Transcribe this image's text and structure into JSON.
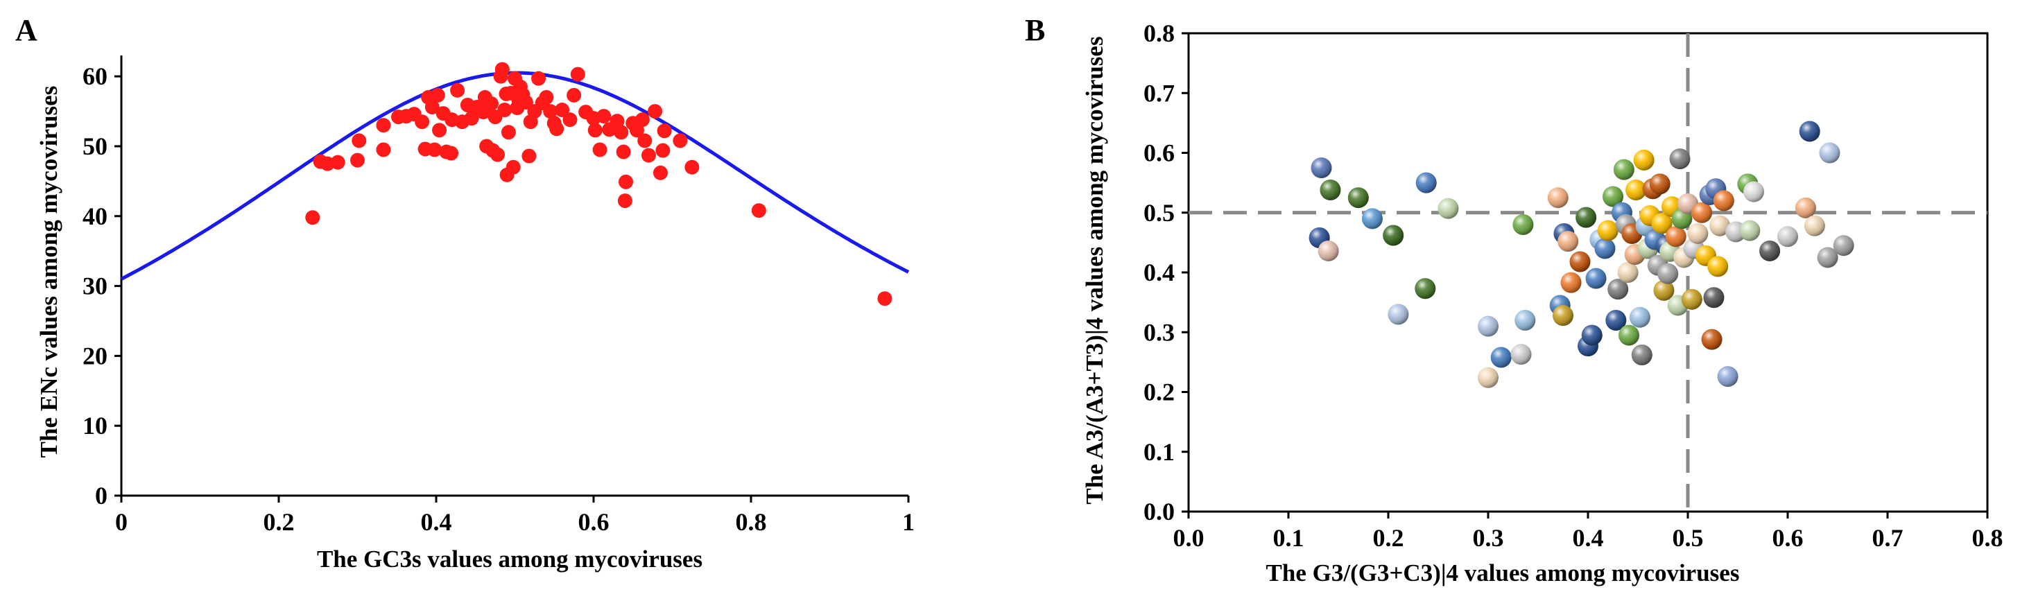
{
  "chart_data": [
    {
      "panel_label": "A",
      "type": "scatter",
      "xlabel": "The GC3s values among mycoviruses",
      "ylabel": "The ENc values among mycoviruses",
      "xlim": [
        0,
        1
      ],
      "ylim": [
        0,
        62
      ],
      "xticks": [
        "0",
        "0.2",
        "0.4",
        "0.6",
        "0.8",
        "1"
      ],
      "xtick_values": [
        0,
        0.2,
        0.4,
        0.6,
        0.8,
        1
      ],
      "yticks": [
        "0",
        "10",
        "20",
        "30",
        "40",
        "50",
        "60"
      ],
      "ytick_values": [
        0,
        10,
        20,
        30,
        40,
        50,
        60
      ],
      "expected_curve": "ENc = 2 + GC3s + 29/(GC3s^2 + (1 - GC3s)^2)",
      "colors": {
        "points": "#ff1a1a",
        "curve": "#1a1aee"
      },
      "points": [
        {
          "x": 0.243,
          "y": 39.8
        },
        {
          "x": 0.253,
          "y": 47.8
        },
        {
          "x": 0.262,
          "y": 47.5
        },
        {
          "x": 0.275,
          "y": 47.7
        },
        {
          "x": 0.3,
          "y": 48.0
        },
        {
          "x": 0.302,
          "y": 50.8
        },
        {
          "x": 0.333,
          "y": 53.0
        },
        {
          "x": 0.333,
          "y": 49.5
        },
        {
          "x": 0.352,
          "y": 54.2
        },
        {
          "x": 0.362,
          "y": 54.3
        },
        {
          "x": 0.372,
          "y": 54.6
        },
        {
          "x": 0.382,
          "y": 53.5
        },
        {
          "x": 0.386,
          "y": 49.6
        },
        {
          "x": 0.39,
          "y": 57.0
        },
        {
          "x": 0.395,
          "y": 55.6
        },
        {
          "x": 0.398,
          "y": 49.5
        },
        {
          "x": 0.402,
          "y": 57.3
        },
        {
          "x": 0.404,
          "y": 52.3
        },
        {
          "x": 0.409,
          "y": 54.7
        },
        {
          "x": 0.413,
          "y": 49.2
        },
        {
          "x": 0.419,
          "y": 49.0
        },
        {
          "x": 0.42,
          "y": 53.8
        },
        {
          "x": 0.427,
          "y": 58.0
        },
        {
          "x": 0.433,
          "y": 53.5
        },
        {
          "x": 0.44,
          "y": 55.9
        },
        {
          "x": 0.445,
          "y": 54.0
        },
        {
          "x": 0.452,
          "y": 55.6
        },
        {
          "x": 0.46,
          "y": 54.9
        },
        {
          "x": 0.462,
          "y": 57.0
        },
        {
          "x": 0.464,
          "y": 50.0
        },
        {
          "x": 0.47,
          "y": 56.1
        },
        {
          "x": 0.472,
          "y": 49.4
        },
        {
          "x": 0.475,
          "y": 54.2
        },
        {
          "x": 0.478,
          "y": 48.8
        },
        {
          "x": 0.482,
          "y": 60.0
        },
        {
          "x": 0.484,
          "y": 61.0
        },
        {
          "x": 0.487,
          "y": 55.2
        },
        {
          "x": 0.489,
          "y": 57.5
        },
        {
          "x": 0.49,
          "y": 45.9
        },
        {
          "x": 0.492,
          "y": 52.0
        },
        {
          "x": 0.495,
          "y": 57.6
        },
        {
          "x": 0.498,
          "y": 47.0
        },
        {
          "x": 0.5,
          "y": 59.7
        },
        {
          "x": 0.503,
          "y": 55.5
        },
        {
          "x": 0.505,
          "y": 56.5
        },
        {
          "x": 0.507,
          "y": 58.5
        },
        {
          "x": 0.51,
          "y": 57.4
        },
        {
          "x": 0.514,
          "y": 56.3
        },
        {
          "x": 0.518,
          "y": 48.6
        },
        {
          "x": 0.52,
          "y": 53.5
        },
        {
          "x": 0.525,
          "y": 55.0
        },
        {
          "x": 0.53,
          "y": 59.7
        },
        {
          "x": 0.535,
          "y": 56.2
        },
        {
          "x": 0.54,
          "y": 57.0
        },
        {
          "x": 0.545,
          "y": 55.0
        },
        {
          "x": 0.55,
          "y": 53.3
        },
        {
          "x": 0.553,
          "y": 52.5
        },
        {
          "x": 0.56,
          "y": 55.2
        },
        {
          "x": 0.57,
          "y": 53.8
        },
        {
          "x": 0.575,
          "y": 57.3
        },
        {
          "x": 0.58,
          "y": 60.3
        },
        {
          "x": 0.59,
          "y": 54.9
        },
        {
          "x": 0.6,
          "y": 54.0
        },
        {
          "x": 0.602,
          "y": 52.3
        },
        {
          "x": 0.608,
          "y": 49.5
        },
        {
          "x": 0.613,
          "y": 54.3
        },
        {
          "x": 0.62,
          "y": 52.4
        },
        {
          "x": 0.63,
          "y": 53.6
        },
        {
          "x": 0.635,
          "y": 52.0
        },
        {
          "x": 0.638,
          "y": 49.2
        },
        {
          "x": 0.64,
          "y": 42.2
        },
        {
          "x": 0.641,
          "y": 44.9
        },
        {
          "x": 0.65,
          "y": 53.3
        },
        {
          "x": 0.655,
          "y": 52.3
        },
        {
          "x": 0.662,
          "y": 53.8
        },
        {
          "x": 0.665,
          "y": 50.8
        },
        {
          "x": 0.67,
          "y": 48.7
        },
        {
          "x": 0.678,
          "y": 55.0
        },
        {
          "x": 0.685,
          "y": 46.2
        },
        {
          "x": 0.688,
          "y": 49.4
        },
        {
          "x": 0.69,
          "y": 52.2
        },
        {
          "x": 0.71,
          "y": 50.8
        },
        {
          "x": 0.725,
          "y": 47.0
        },
        {
          "x": 0.81,
          "y": 40.8
        },
        {
          "x": 0.97,
          "y": 28.2
        }
      ]
    },
    {
      "panel_label": "B",
      "type": "scatter",
      "xlabel": "The G3/(G3+C3)|4 values among mycoviruses",
      "ylabel": "The A3/(A3+T3)|4 values among mycoviruses",
      "xlim": [
        0,
        0.8
      ],
      "ylim": [
        0,
        0.8
      ],
      "xticks": [
        "0.0",
        "0.1",
        "0.2",
        "0.3",
        "0.4",
        "0.5",
        "0.6",
        "0.7",
        "0.8"
      ],
      "xtick_values": [
        0,
        0.1,
        0.2,
        0.3,
        0.4,
        0.5,
        0.6,
        0.7,
        0.8
      ],
      "yticks": [
        "0.0",
        "0.1",
        "0.2",
        "0.3",
        "0.4",
        "0.5",
        "0.6",
        "0.7",
        "0.8"
      ],
      "ytick_values": [
        0,
        0.1,
        0.2,
        0.3,
        0.4,
        0.5,
        0.6,
        0.7,
        0.8
      ],
      "reference_lines": {
        "x": 0.5,
        "y": 0.5
      },
      "colors": {
        "reference_line": "#888888"
      },
      "points": [
        {
          "x": 0.133,
          "y": 0.575,
          "c": "#5a78b8"
        },
        {
          "x": 0.142,
          "y": 0.538,
          "c": "#4a7a2e"
        },
        {
          "x": 0.131,
          "y": 0.458,
          "c": "#2f5597"
        },
        {
          "x": 0.14,
          "y": 0.436,
          "c": "#e8c0b0"
        },
        {
          "x": 0.17,
          "y": 0.525,
          "c": "#4a7a2e"
        },
        {
          "x": 0.184,
          "y": 0.49,
          "c": "#5b9bd5"
        },
        {
          "x": 0.205,
          "y": 0.462,
          "c": "#3f6d25"
        },
        {
          "x": 0.21,
          "y": 0.33,
          "c": "#b4c7e7"
        },
        {
          "x": 0.238,
          "y": 0.55,
          "c": "#4a7fc1"
        },
        {
          "x": 0.237,
          "y": 0.373,
          "c": "#4a7a2e"
        },
        {
          "x": 0.26,
          "y": 0.507,
          "c": "#c5d9b0"
        },
        {
          "x": 0.3,
          "y": 0.31,
          "c": "#b4c7e7"
        },
        {
          "x": 0.3,
          "y": 0.224,
          "c": "#f2d9b8"
        },
        {
          "x": 0.313,
          "y": 0.258,
          "c": "#4a7fc1"
        },
        {
          "x": 0.333,
          "y": 0.263,
          "c": "#d0d0d0"
        },
        {
          "x": 0.337,
          "y": 0.32,
          "c": "#9dc3e6"
        },
        {
          "x": 0.335,
          "y": 0.48,
          "c": "#70ad47"
        },
        {
          "x": 0.37,
          "y": 0.525,
          "c": "#f4b183"
        },
        {
          "x": 0.372,
          "y": 0.345,
          "c": "#4a7fc1"
        },
        {
          "x": 0.375,
          "y": 0.328,
          "c": "#c9a227"
        },
        {
          "x": 0.376,
          "y": 0.465,
          "c": "#2f5597"
        },
        {
          "x": 0.38,
          "y": 0.452,
          "c": "#f4b183"
        },
        {
          "x": 0.383,
          "y": 0.383,
          "c": "#ed7d31"
        },
        {
          "x": 0.392,
          "y": 0.418,
          "c": "#c55a11"
        },
        {
          "x": 0.398,
          "y": 0.492,
          "c": "#3f6d25"
        },
        {
          "x": 0.4,
          "y": 0.277,
          "c": "#2f5597"
        },
        {
          "x": 0.404,
          "y": 0.295,
          "c": "#2f5597"
        },
        {
          "x": 0.408,
          "y": 0.39,
          "c": "#4a7fc1"
        },
        {
          "x": 0.412,
          "y": 0.455,
          "c": "#9dc3e6"
        },
        {
          "x": 0.417,
          "y": 0.44,
          "c": "#4a7fc1"
        },
        {
          "x": 0.42,
          "y": 0.47,
          "c": "#ffc000"
        },
        {
          "x": 0.425,
          "y": 0.527,
          "c": "#70ad47"
        },
        {
          "x": 0.428,
          "y": 0.32,
          "c": "#2f5597"
        },
        {
          "x": 0.43,
          "y": 0.372,
          "c": "#808080"
        },
        {
          "x": 0.434,
          "y": 0.5,
          "c": "#4a7fc1"
        },
        {
          "x": 0.436,
          "y": 0.572,
          "c": "#70ad47"
        },
        {
          "x": 0.438,
          "y": 0.48,
          "c": "#a5a5a5"
        },
        {
          "x": 0.44,
          "y": 0.4,
          "c": "#f2d9b8"
        },
        {
          "x": 0.441,
          "y": 0.295,
          "c": "#70ad47"
        },
        {
          "x": 0.444,
          "y": 0.465,
          "c": "#c55a11"
        },
        {
          "x": 0.447,
          "y": 0.43,
          "c": "#f4b183"
        },
        {
          "x": 0.448,
          "y": 0.538,
          "c": "#ffc000"
        },
        {
          "x": 0.452,
          "y": 0.325,
          "c": "#9dc3e6"
        },
        {
          "x": 0.454,
          "y": 0.262,
          "c": "#808080"
        },
        {
          "x": 0.456,
          "y": 0.588,
          "c": "#ffc000"
        },
        {
          "x": 0.458,
          "y": 0.478,
          "c": "#9dc3e6"
        },
        {
          "x": 0.46,
          "y": 0.44,
          "c": "#c5d9b0"
        },
        {
          "x": 0.462,
          "y": 0.495,
          "c": "#ffc000"
        },
        {
          "x": 0.465,
          "y": 0.54,
          "c": "#c55a11"
        },
        {
          "x": 0.467,
          "y": 0.455,
          "c": "#4a7fc1"
        },
        {
          "x": 0.47,
          "y": 0.412,
          "c": "#a5a5a5"
        },
        {
          "x": 0.472,
          "y": 0.548,
          "c": "#c55a11"
        },
        {
          "x": 0.474,
          "y": 0.482,
          "c": "#ffc000"
        },
        {
          "x": 0.476,
          "y": 0.37,
          "c": "#c9a227"
        },
        {
          "x": 0.478,
          "y": 0.445,
          "c": "#2f5597"
        },
        {
          "x": 0.48,
          "y": 0.398,
          "c": "#a5a5a5"
        },
        {
          "x": 0.482,
          "y": 0.435,
          "c": "#c5d9b0"
        },
        {
          "x": 0.484,
          "y": 0.51,
          "c": "#ffc000"
        },
        {
          "x": 0.488,
          "y": 0.46,
          "c": "#ed7d31"
        },
        {
          "x": 0.49,
          "y": 0.345,
          "c": "#c5d9b0"
        },
        {
          "x": 0.492,
          "y": 0.59,
          "c": "#808080"
        },
        {
          "x": 0.494,
          "y": 0.49,
          "c": "#70ad47"
        },
        {
          "x": 0.496,
          "y": 0.425,
          "c": "#f2d9b8"
        },
        {
          "x": 0.5,
          "y": 0.515,
          "c": "#e8c0b0"
        },
        {
          "x": 0.504,
          "y": 0.355,
          "c": "#c9a227"
        },
        {
          "x": 0.506,
          "y": 0.44,
          "c": "#d0d0d0"
        },
        {
          "x": 0.51,
          "y": 0.465,
          "c": "#f2d9b8"
        },
        {
          "x": 0.514,
          "y": 0.5,
          "c": "#ed7d31"
        },
        {
          "x": 0.518,
          "y": 0.428,
          "c": "#ffc000"
        },
        {
          "x": 0.522,
          "y": 0.53,
          "c": "#5a78b8"
        },
        {
          "x": 0.524,
          "y": 0.288,
          "c": "#c55a11"
        },
        {
          "x": 0.526,
          "y": 0.358,
          "c": "#595959"
        },
        {
          "x": 0.528,
          "y": 0.54,
          "c": "#5a78b8"
        },
        {
          "x": 0.53,
          "y": 0.41,
          "c": "#ffc000"
        },
        {
          "x": 0.532,
          "y": 0.478,
          "c": "#f2d9b8"
        },
        {
          "x": 0.536,
          "y": 0.52,
          "c": "#ed7d31"
        },
        {
          "x": 0.54,
          "y": 0.226,
          "c": "#8faadc"
        },
        {
          "x": 0.548,
          "y": 0.468,
          "c": "#d0d0d0"
        },
        {
          "x": 0.56,
          "y": 0.548,
          "c": "#70ad47"
        },
        {
          "x": 0.562,
          "y": 0.47,
          "c": "#c5d9b0"
        },
        {
          "x": 0.566,
          "y": 0.535,
          "c": "#e0e0e0"
        },
        {
          "x": 0.582,
          "y": 0.436,
          "c": "#595959"
        },
        {
          "x": 0.6,
          "y": 0.46,
          "c": "#d0d0d0"
        },
        {
          "x": 0.618,
          "y": 0.508,
          "c": "#f4b183"
        },
        {
          "x": 0.622,
          "y": 0.636,
          "c": "#2f5597"
        },
        {
          "x": 0.627,
          "y": 0.478,
          "c": "#f2d9b8"
        },
        {
          "x": 0.64,
          "y": 0.425,
          "c": "#a5a5a5"
        },
        {
          "x": 0.642,
          "y": 0.6,
          "c": "#b4c7e7"
        },
        {
          "x": 0.656,
          "y": 0.445,
          "c": "#a5a5a5"
        }
      ]
    }
  ]
}
